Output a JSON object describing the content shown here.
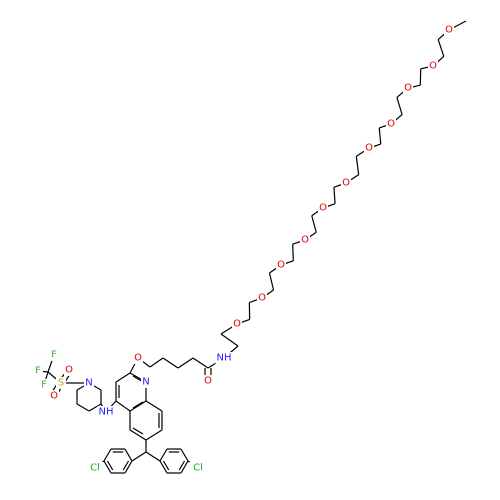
{
  "atoms": [
    {
      "label": "O"
    },
    {
      "label": "O"
    },
    {
      "label": "O"
    },
    {
      "label": "O"
    },
    {
      "label": "O"
    },
    {
      "label": "O"
    },
    {
      "label": "O"
    },
    {
      "label": "O"
    },
    {
      "label": "O"
    },
    {
      "label": "O"
    },
    {
      "label": "O"
    },
    {
      "label": "NH"
    },
    {
      "label": "O"
    },
    {
      "label": "O"
    },
    {
      "label": "N"
    },
    {
      "label": "NH"
    },
    {
      "label": "N"
    },
    {
      "label": "S"
    },
    {
      "label": "O"
    },
    {
      "label": "O"
    },
    {
      "label": "F"
    },
    {
      "label": "F"
    },
    {
      "label": "F"
    },
    {
      "label": "Cl"
    },
    {
      "label": "Cl"
    }
  ]
}
